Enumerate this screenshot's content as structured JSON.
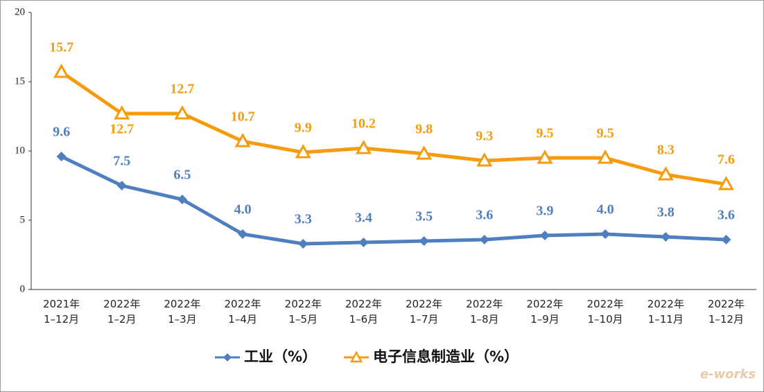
{
  "chart_data": {
    "type": "line",
    "categories": [
      "2021年\n1–12月",
      "2022年\n1–2月",
      "2022年\n1–3月",
      "2022年\n1–4月",
      "2022年\n1–5月",
      "2022年\n1–6月",
      "2022年\n1–7月",
      "2022年\n1–8月",
      "2022年\n1–9月",
      "2022年\n1–10月",
      "2022年\n1–11月",
      "2022年\n1–12月"
    ],
    "series": [
      {
        "name": "工业（%）",
        "color": "#4f7fbe",
        "marker": "diamond",
        "values": [
          9.6,
          7.5,
          6.5,
          4.0,
          3.3,
          3.4,
          3.5,
          3.6,
          3.9,
          4.0,
          3.8,
          3.6
        ],
        "value_labels": [
          "9.6",
          "7.5",
          "6.5",
          "4.0",
          "3.3",
          "3.4",
          "3.5",
          "3.6",
          "3.9",
          "4.0",
          "3.8",
          "3.6"
        ]
      },
      {
        "name": "电子信息制造业（%）",
        "color": "#f59b0c",
        "marker": "triangle",
        "values": [
          15.7,
          12.7,
          12.7,
          10.7,
          9.9,
          10.2,
          9.8,
          9.3,
          9.5,
          9.5,
          8.3,
          7.6
        ],
        "value_labels": [
          "15.7",
          "12.7",
          "12.7",
          "10.7",
          "9.9",
          "10.2",
          "9.8",
          "9.3",
          "9.5",
          "9.5",
          "8.3",
          "7.6"
        ]
      }
    ],
    "ylim": [
      0,
      20
    ],
    "yticks": [
      0,
      5,
      10,
      15,
      20
    ],
    "grid": false,
    "legend": "bottom",
    "watermark": "e-works"
  }
}
